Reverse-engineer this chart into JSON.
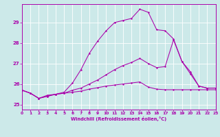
{
  "title": "",
  "xlabel": "Windchill (Refroidissement éolien,°C)",
  "bg_color": "#cce9e9",
  "grid_color": "#ffffff",
  "line_color": "#aa00aa",
  "xmin": 0,
  "xmax": 23,
  "ymin": 24.75,
  "ymax": 29.9,
  "yticks": [
    25,
    26,
    27,
    28,
    29
  ],
  "xticks": [
    0,
    1,
    2,
    3,
    4,
    5,
    6,
    7,
    8,
    9,
    10,
    11,
    12,
    13,
    14,
    15,
    16,
    17,
    18,
    19,
    20,
    21,
    22,
    23
  ],
  "line1_x": [
    0,
    1,
    2,
    3,
    4,
    5,
    6,
    7,
    8,
    9,
    10,
    11,
    12,
    13,
    14,
    15,
    16,
    17,
    18,
    19,
    20,
    21,
    22,
    23
  ],
  "line1_y": [
    25.7,
    25.55,
    25.3,
    25.45,
    25.5,
    25.6,
    26.05,
    26.7,
    27.5,
    28.1,
    28.6,
    29.0,
    29.1,
    29.2,
    29.65,
    29.5,
    28.65,
    28.6,
    28.2,
    27.1,
    26.6,
    25.9,
    25.8,
    25.8
  ],
  "line2_x": [
    0,
    1,
    2,
    3,
    4,
    5,
    6,
    7,
    8,
    9,
    10,
    11,
    12,
    13,
    14,
    15,
    16,
    17,
    18,
    19,
    20,
    21,
    22,
    23
  ],
  "line2_y": [
    25.7,
    25.55,
    25.3,
    25.4,
    25.5,
    25.55,
    25.7,
    25.8,
    26.0,
    26.2,
    26.45,
    26.7,
    26.9,
    27.05,
    27.25,
    27.0,
    26.8,
    26.85,
    28.15,
    27.1,
    26.5,
    25.9,
    25.8,
    25.8
  ],
  "line3_x": [
    0,
    1,
    2,
    3,
    4,
    5,
    6,
    7,
    8,
    9,
    10,
    11,
    12,
    13,
    14,
    15,
    16,
    17,
    18,
    19,
    20,
    21,
    22,
    23
  ],
  "line3_y": [
    25.7,
    25.55,
    25.3,
    25.4,
    25.5,
    25.55,
    25.6,
    25.65,
    25.75,
    25.82,
    25.9,
    25.95,
    26.0,
    26.05,
    26.1,
    25.85,
    25.75,
    25.72,
    25.72,
    25.72,
    25.72,
    25.72,
    25.72,
    25.72
  ]
}
